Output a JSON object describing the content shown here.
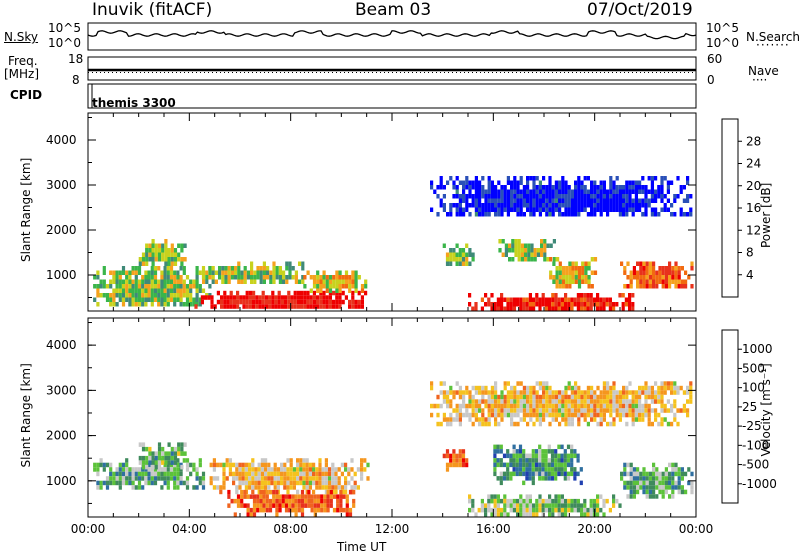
{
  "header": {
    "site": "Inuvik (fitACF)",
    "beam": "Beam 03",
    "date": "07/Oct/2019"
  },
  "top_panels": {
    "nsky_label": "N.Sky",
    "nsearch_label": "N.Search",
    "nsky_ticks_left": [
      "10^5",
      "10^0"
    ],
    "nsky_ticks_right": [
      "10^5",
      "10^0"
    ],
    "freq_label_1": "Freq.",
    "freq_label_2": "[MHz]",
    "freq_ticks": [
      "18",
      "8"
    ],
    "nave_label": "Nave",
    "nave_ticks": [
      "60",
      "0"
    ],
    "cpid_label": "CPID",
    "cpid_value": "themis 3300"
  },
  "chart_data": [
    {
      "type": "heatmap",
      "name": "power-panel",
      "ylabel": "Slant Range [km]",
      "ylim": [
        200,
        4600
      ],
      "yticks": [
        "4000",
        "3000",
        "2000",
        "1000"
      ],
      "colorbar_label": "Power [dB]",
      "colorbar_ticks": [
        "28",
        "24",
        "20",
        "16",
        "12",
        "8",
        "4"
      ],
      "colors": [
        "#0000ff",
        "#2a50b8",
        "#3f8a78",
        "#3ab54a",
        "#c8d21e",
        "#f5a21e",
        "#f26a10",
        "#e8321c",
        "#ee0000"
      ],
      "bands": [
        {
          "x0": 0.2,
          "x1": 4.8,
          "r0": 300,
          "r1": 1200,
          "level": 0.45
        },
        {
          "x0": 2.0,
          "x1": 3.8,
          "r0": 1250,
          "r1": 1800,
          "level": 0.45
        },
        {
          "x0": 4.5,
          "x1": 8.5,
          "r0": 800,
          "r1": 1300,
          "level": 0.45
        },
        {
          "x0": 4.2,
          "x1": 11.0,
          "r0": 250,
          "r1": 650,
          "level": 0.95
        },
        {
          "x0": 8.5,
          "x1": 11.0,
          "r0": 650,
          "r1": 1100,
          "level": 0.55
        },
        {
          "x0": 14.0,
          "x1": 15.2,
          "r0": 1200,
          "r1": 1700,
          "level": 0.4
        },
        {
          "x0": 16.2,
          "x1": 18.5,
          "r0": 1350,
          "r1": 1800,
          "level": 0.45
        },
        {
          "x0": 18.2,
          "x1": 20.0,
          "r0": 700,
          "r1": 1400,
          "level": 0.55
        },
        {
          "x0": 15.0,
          "x1": 21.5,
          "r0": 250,
          "r1": 600,
          "level": 0.9
        },
        {
          "x0": 21.0,
          "x1": 23.8,
          "r0": 700,
          "r1": 1300,
          "level": 0.75
        },
        {
          "x0": 13.5,
          "x1": 23.8,
          "r0": 2300,
          "r1": 3200,
          "level": 0.05
        }
      ]
    },
    {
      "type": "heatmap",
      "name": "velocity-panel",
      "ylabel": "Slant Range [km]",
      "ylim": [
        200,
        4600
      ],
      "yticks": [
        "4000",
        "3000",
        "2000",
        "1000"
      ],
      "colorbar_label": "Velocity [m s^-1]",
      "colorbar_ticks": [
        "1000",
        "500",
        "100",
        "25",
        "-25",
        "-100",
        "-500",
        "-1000"
      ],
      "colors": [
        "#2040b0",
        "#2f6fa0",
        "#3f8a5c",
        "#5cc23a",
        "#c8c8c8",
        "#f5c21e",
        "#f5961e",
        "#f0641e",
        "#e8321c",
        "#ee0000"
      ],
      "bands": [
        {
          "x0": 0.2,
          "x1": 4.5,
          "r0": 900,
          "r1": 1500,
          "level": 0.7
        },
        {
          "x0": 2.0,
          "x1": 3.8,
          "r0": 1300,
          "r1": 1850,
          "level": 0.65
        },
        {
          "x0": 4.8,
          "x1": 11.0,
          "r0": 800,
          "r1": 1500,
          "level": 0.44
        },
        {
          "x0": 5.5,
          "x1": 10.5,
          "r0": 300,
          "r1": 800,
          "level": 0.22
        },
        {
          "x0": 14.0,
          "x1": 15.0,
          "r0": 1300,
          "r1": 1700,
          "level": 0.22
        },
        {
          "x0": 16.0,
          "x1": 19.5,
          "r0": 1000,
          "r1": 1800,
          "level": 0.75
        },
        {
          "x0": 15.0,
          "x1": 21.0,
          "r0": 250,
          "r1": 700,
          "level": 0.62
        },
        {
          "x0": 21.0,
          "x1": 23.8,
          "r0": 700,
          "r1": 1400,
          "level": 0.7
        },
        {
          "x0": 13.5,
          "x1": 23.8,
          "r0": 2300,
          "r1": 3200,
          "level": 0.44
        }
      ]
    }
  ],
  "xaxis": {
    "label": "Time UT",
    "ticks": [
      "00:00",
      "04:00",
      "08:00",
      "12:00",
      "16:00",
      "20:00",
      "00:00"
    ],
    "range_hours": [
      0,
      24
    ]
  }
}
